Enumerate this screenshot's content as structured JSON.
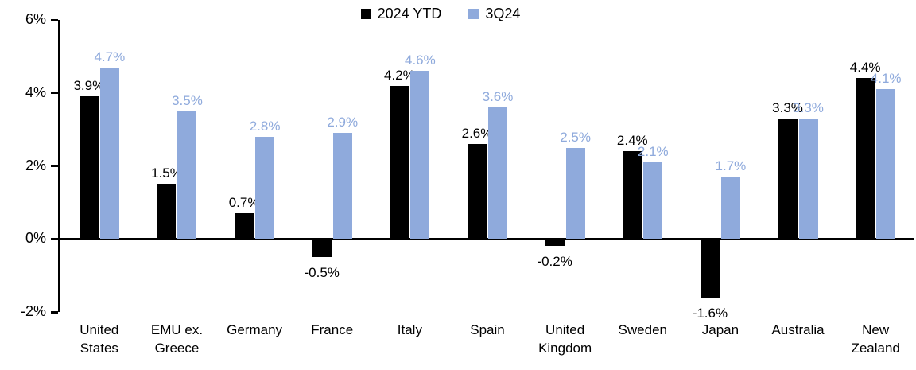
{
  "legend": {
    "items": [
      {
        "label": "2024 YTD",
        "color": "#000000"
      },
      {
        "label": "3Q24",
        "color": "#8FAADC"
      }
    ]
  },
  "chart_data": {
    "type": "bar",
    "categories": [
      "United States",
      "EMU ex. Greece",
      "Germany",
      "France",
      "Italy",
      "Spain",
      "United Kingdom",
      "Sweden",
      "Japan",
      "Australia",
      "New Zealand"
    ],
    "series": [
      {
        "name": "2024 YTD",
        "color": "#000000",
        "label_color": "#000000",
        "values": [
          3.9,
          1.5,
          0.7,
          -0.5,
          4.2,
          2.6,
          -0.2,
          2.4,
          -1.6,
          3.3,
          4.4
        ]
      },
      {
        "name": "3Q24",
        "color": "#8FAADC",
        "label_color": "#8FAADC",
        "values": [
          4.7,
          3.5,
          2.8,
          2.9,
          4.6,
          3.6,
          2.5,
          2.1,
          1.7,
          3.3,
          4.1
        ]
      }
    ],
    "data_labels": {
      "series": [
        [
          "3.9%",
          "1.5%",
          "0.7%",
          "-0.5%",
          "4.2%",
          "2.6%",
          "-0.2%",
          "2.4%",
          "-1.6%",
          "3.3%",
          "4.4%"
        ],
        [
          "4.7%",
          "3.5%",
          "2.8%",
          "2.9%",
          "4.6%",
          "3.6%",
          "2.5%",
          "2.1%",
          "1.7%",
          "3.3%",
          "4.1%"
        ]
      ]
    },
    "y_axis": {
      "min": -2,
      "max": 6,
      "tick_step": 2,
      "tick_labels": [
        "6%",
        "4%",
        "2%",
        "0%",
        "-2%"
      ]
    },
    "title": "",
    "xlabel": "",
    "ylabel": "",
    "legend_position": "top-center",
    "grid": false
  }
}
